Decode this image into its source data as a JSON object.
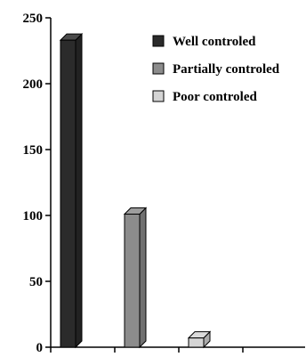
{
  "chart_data": {
    "type": "bar",
    "categories": [
      "Well controled",
      "Partially controled",
      "Poor controled"
    ],
    "values": [
      233,
      101,
      7
    ],
    "ylim": [
      0,
      250
    ],
    "yticks": [
      0,
      50,
      100,
      150,
      200,
      250
    ],
    "colors": [
      "#2b2b2b",
      "#8c8c8c",
      "#d4d4d4"
    ],
    "legend": {
      "placement": "top-right",
      "entries": [
        "Well controled",
        "Partially controled",
        "Poor controled"
      ]
    },
    "grid": false
  }
}
